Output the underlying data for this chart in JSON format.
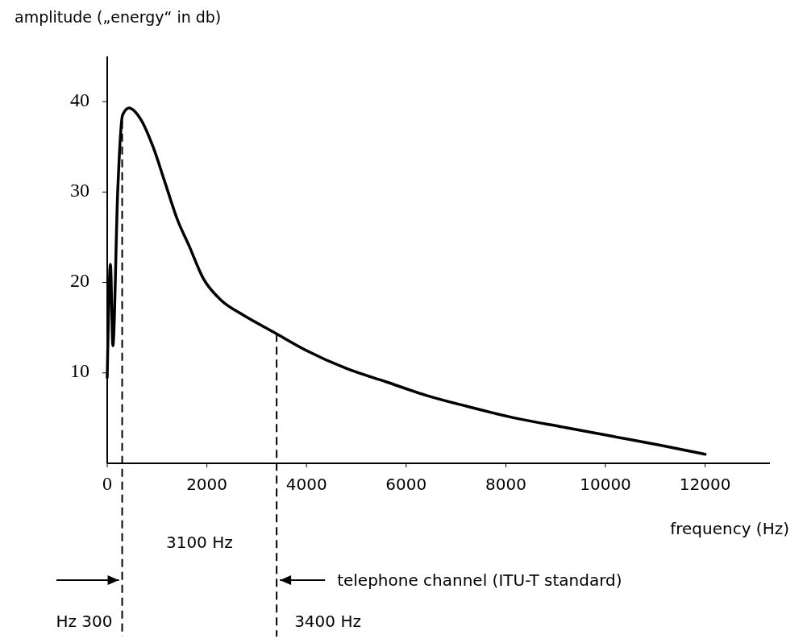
{
  "chart_data": {
    "type": "line",
    "xlabel": "frequency (Hz)",
    "ylabel": "amplitude („energy“ in db)",
    "xlim": [
      0,
      13300
    ],
    "xticks": [
      0,
      2000,
      4000,
      6000,
      8000,
      10000,
      12000
    ],
    "ylim": [
      0,
      45
    ],
    "yticks": [
      10,
      20,
      30,
      40
    ],
    "series": [
      {
        "color": "#000000",
        "x": [
          0,
          65,
          113,
          210,
          307,
          436,
          678,
          920,
          1163,
          1405,
          1647,
          1922,
          2293,
          2697,
          3343,
          3989,
          4796,
          5604,
          6412,
          7219,
          8188,
          9157,
          10126,
          11095,
          12000
        ],
        "values": [
          9.5,
          22,
          13,
          30,
          38.5,
          39.3,
          38,
          35,
          31,
          27,
          24,
          20.5,
          18,
          16.5,
          14.5,
          12.5,
          10.5,
          9,
          7.5,
          6.3,
          5,
          4,
          3,
          2,
          1
        ]
      }
    ],
    "ref_lines": [
      {
        "axis": "x",
        "value": 300,
        "label": "Hz 300",
        "line_style": "dashed"
      },
      {
        "axis": "x",
        "value": 3400,
        "label": "3400 Hz",
        "line_style": "dashed"
      }
    ],
    "annotations": [
      "3100 Hz",
      "telephone channel (ITU-T standard)"
    ],
    "grid": false,
    "line_style": "solid"
  }
}
